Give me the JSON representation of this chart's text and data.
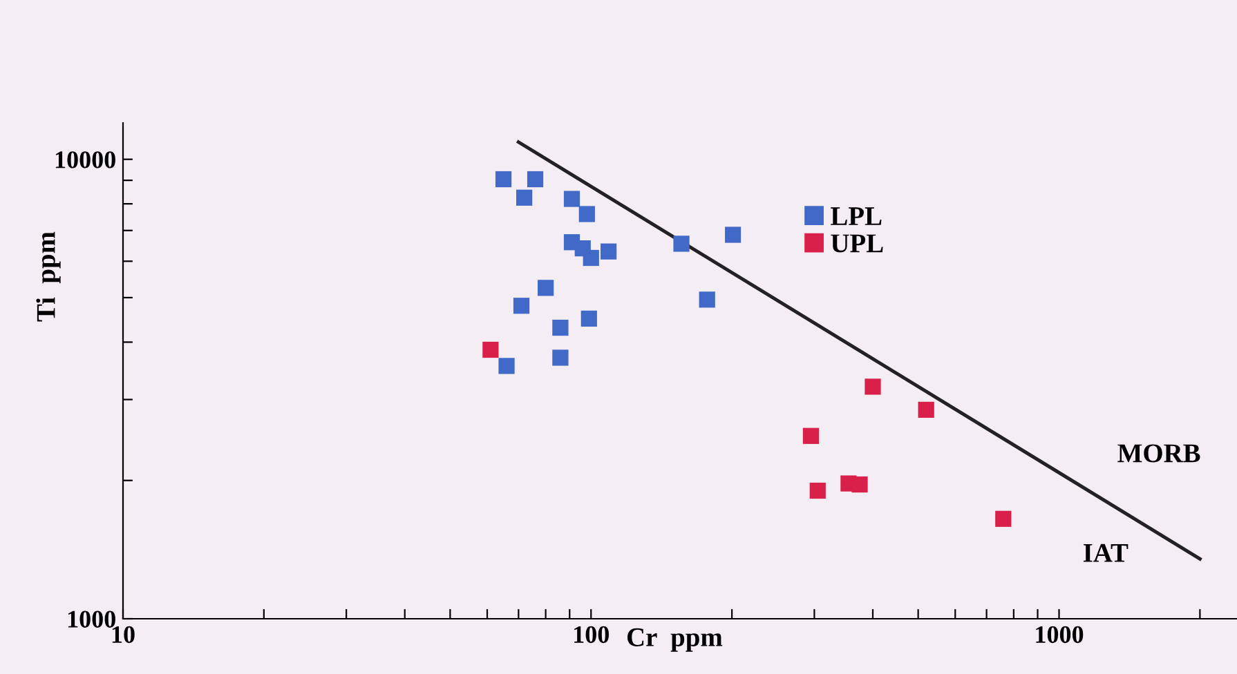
{
  "chart_data": {
    "type": "scatter",
    "xlabel": "Cr  ppm",
    "ylabel": "Ti  ppm",
    "log": "xy",
    "xlim": [
      10,
      2400
    ],
    "ylim": [
      1000,
      12000
    ],
    "xticks": [
      10,
      {
        "value": 20,
        "label": null
      },
      {
        "value": 30,
        "label": null
      },
      {
        "value": 40,
        "label": null
      },
      {
        "value": 50,
        "label": null
      },
      {
        "value": 60,
        "label": null
      },
      {
        "value": 70,
        "label": null
      },
      {
        "value": 80,
        "label": null
      },
      {
        "value": 90,
        "label": null
      },
      100,
      {
        "value": 200,
        "label": null
      },
      {
        "value": 300,
        "label": null
      },
      {
        "value": 400,
        "label": null
      },
      {
        "value": 500,
        "label": null
      },
      {
        "value": 600,
        "label": null
      },
      {
        "value": 700,
        "label": null
      },
      {
        "value": 800,
        "label": null
      },
      {
        "value": 900,
        "label": null
      },
      1000,
      {
        "value": 2000,
        "label": null
      }
    ],
    "yticks": [
      1000,
      {
        "value": 2000,
        "label": null
      },
      {
        "value": 3000,
        "label": null
      },
      {
        "value": 4000,
        "label": null
      },
      {
        "value": 5000,
        "label": null
      },
      {
        "value": 6000,
        "label": null
      },
      {
        "value": 7000,
        "label": null
      },
      {
        "value": 8000,
        "label": null
      },
      {
        "value": 9000,
        "label": null
      },
      10000
    ],
    "marker": "square",
    "legend": "top right",
    "grid": false,
    "series": [
      {
        "name": "LPL",
        "color": "#4169c8",
        "x": [
          65,
          76,
          72,
          91,
          98,
          91,
          96,
          100,
          109,
          156,
          201,
          80,
          71,
          99,
          86,
          177,
          86,
          66
        ],
        "values": [
          9050,
          9050,
          8250,
          8200,
          7600,
          6600,
          6400,
          6100,
          6300,
          6550,
          6850,
          5250,
          4800,
          4500,
          4300,
          4950,
          3700,
          3550
        ]
      },
      {
        "name": "UPL",
        "color": "#d9204a",
        "x": [
          61,
          400,
          520,
          295,
          305,
          355,
          375,
          760
        ],
        "values": [
          3850,
          3200,
          2850,
          2500,
          1900,
          1970,
          1960,
          1650
        ]
      },
      {
        "type": "line",
        "color": "#222222",
        "marker": "none",
        "x": [
          70,
          2000
        ],
        "values": [
          10900,
          1350
        ]
      }
    ],
    "annotations": [
      "MORB",
      "IAT"
    ]
  }
}
